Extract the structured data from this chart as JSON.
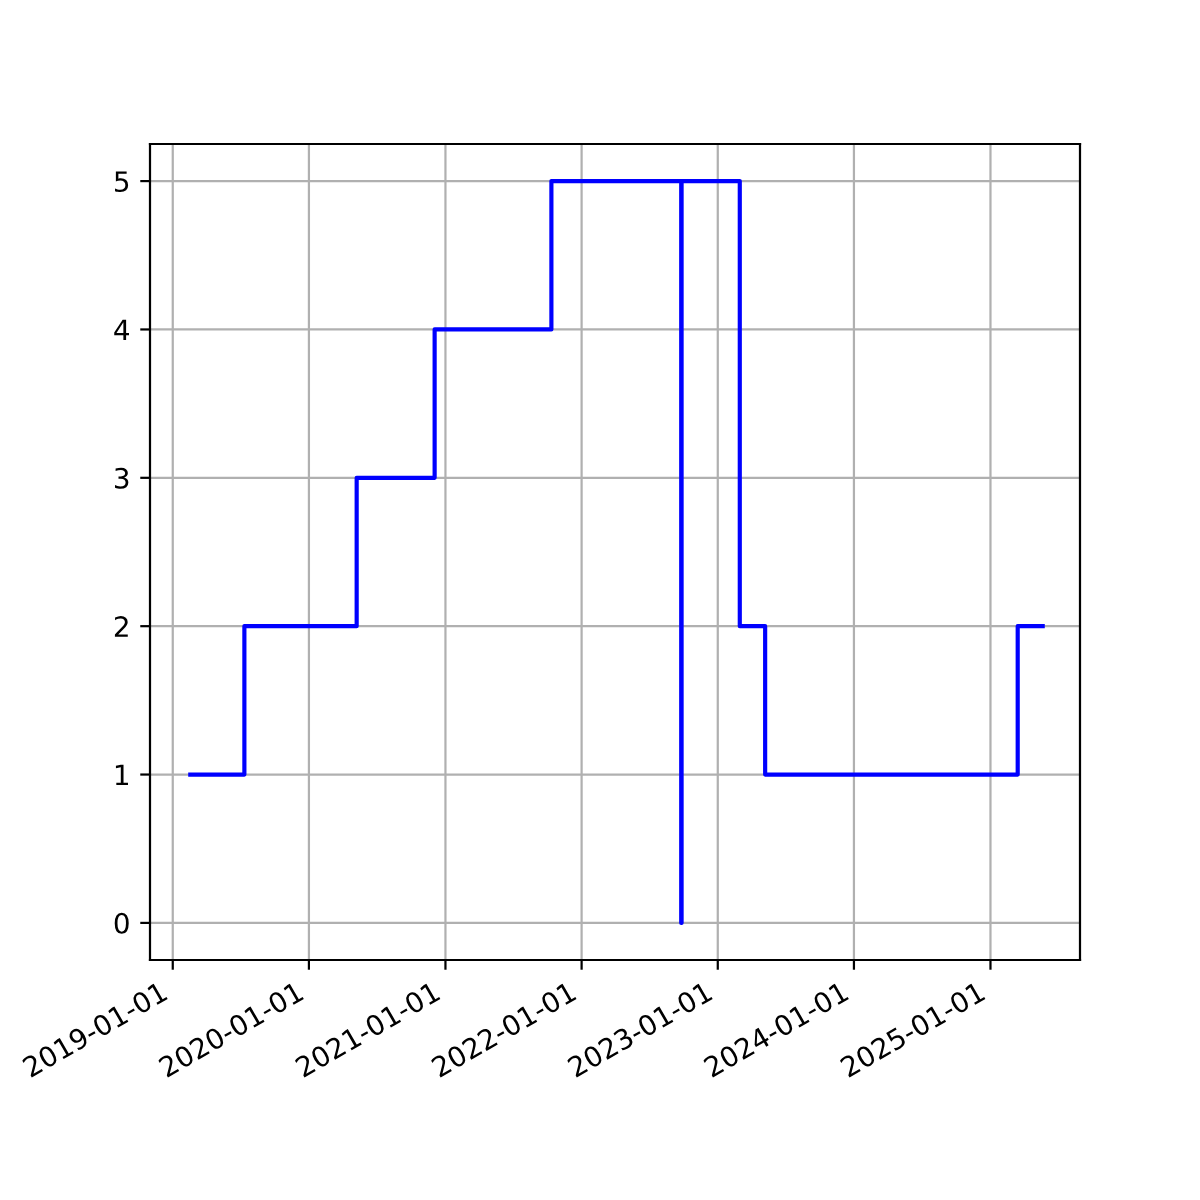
{
  "chart_data": {
    "type": "step",
    "x": [
      "2019-02-17",
      "2019-07-12",
      "2020-05-08",
      "2020-12-03",
      "2021-10-12",
      "2022-09-25",
      "2022-09-26",
      "2023-03-01",
      "2023-05-08",
      "2025-03-15",
      "2025-05-21"
    ],
    "series": [
      {
        "color": "#0000ff",
        "values": [
          1,
          2,
          3,
          4,
          5,
          0,
          5,
          2,
          1,
          2,
          2
        ]
      }
    ],
    "xlim": [
      "2018-11-01",
      "2025-08-29"
    ],
    "xticks": [
      "2019-01-01",
      "2020-01-01",
      "2021-01-01",
      "2022-01-01",
      "2023-01-01",
      "2024-01-01",
      "2025-01-01"
    ],
    "ylim": [
      -0.25,
      5.25
    ],
    "yticks": [
      0,
      1,
      2,
      3,
      4,
      5
    ],
    "grid": true,
    "marker": "none",
    "line_style": "solid",
    "legend": false
  }
}
